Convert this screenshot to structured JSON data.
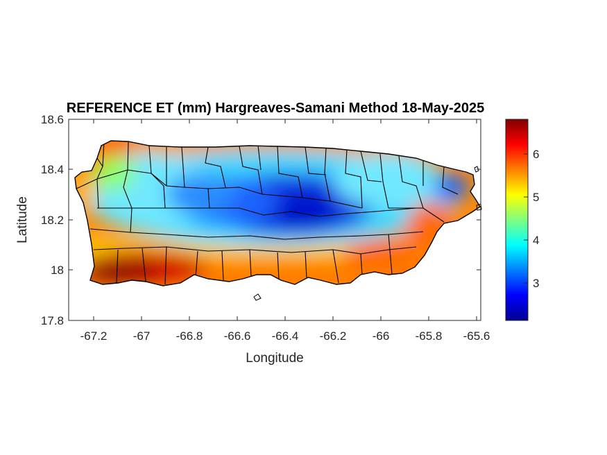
{
  "title": "REFERENCE ET (mm) Hargreaves-Samani Method  18-May-2025",
  "xlabel": "Longitude",
  "ylabel": "Latitude",
  "x_ticks": [
    "-67.2",
    "-67",
    "-66.8",
    "-66.6",
    "-66.4",
    "-66.2",
    "-66",
    "-65.8",
    "-65.6"
  ],
  "y_ticks": [
    "18.6",
    "18.4",
    "18.2",
    "18",
    "17.8"
  ],
  "colorbar_ticks": [
    "6",
    "5",
    "4",
    "3"
  ],
  "map": {
    "region": "Puerto Rico",
    "colormap": "jet",
    "boundaries_color": "#000000"
  },
  "chart_data": {
    "type": "heatmap",
    "title": "REFERENCE ET (mm) Hargreaves-Samani Method  18-May-2025",
    "xlabel": "Longitude",
    "ylabel": "Latitude",
    "xlim": [
      -67.3,
      -65.58
    ],
    "ylim": [
      17.8,
      18.6
    ],
    "colorbar_range": [
      2.1,
      6.8
    ],
    "colorbar_ticks": [
      3,
      4,
      5,
      6
    ],
    "colormap": "jet",
    "grid": false
  }
}
